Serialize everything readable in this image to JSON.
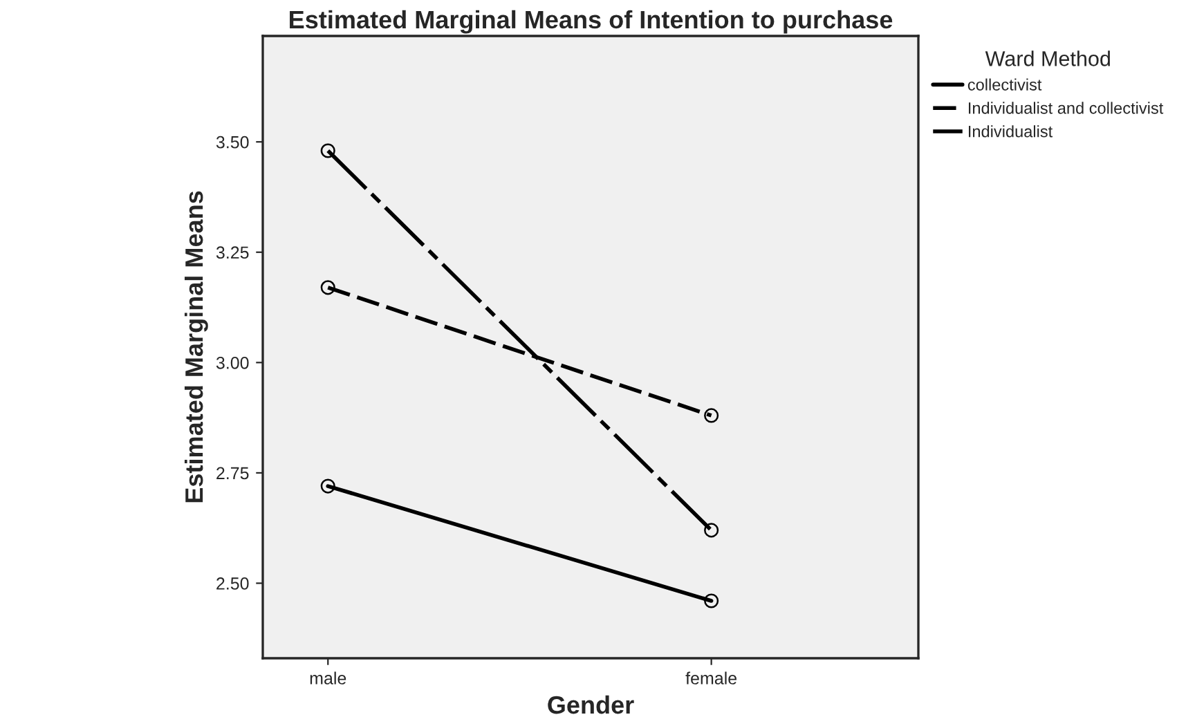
{
  "chart_data": {
    "type": "line",
    "title": "Estimated Marginal Means of Intention to purchase",
    "xlabel": "Gender",
    "ylabel": "Estimated Marginal Means",
    "legend_title": "Ward Method",
    "categories": [
      "male",
      "female"
    ],
    "series": [
      {
        "name": "collectivist",
        "color": "#000000",
        "values": [
          2.72,
          2.46
        ],
        "line_style": "solid"
      },
      {
        "name": "Individualist and collectivist",
        "color": "#000000",
        "values": [
          3.17,
          2.88
        ],
        "line_style": "dashed"
      },
      {
        "name": "Individualist",
        "color": "#000000",
        "values": [
          3.48,
          2.62
        ],
        "line_style": "dashed"
      }
    ],
    "ylim": [
      2.33,
      3.74
    ],
    "yticks": [
      {
        "value": 2.5,
        "label": "2.50"
      },
      {
        "value": 2.75,
        "label": "2.75"
      },
      {
        "value": 3.0,
        "label": "3.00"
      },
      {
        "value": 3.25,
        "label": "3.25"
      },
      {
        "value": 3.5,
        "label": "3.50"
      }
    ],
    "grid": false,
    "legend": "top right",
    "marker": "circle"
  }
}
